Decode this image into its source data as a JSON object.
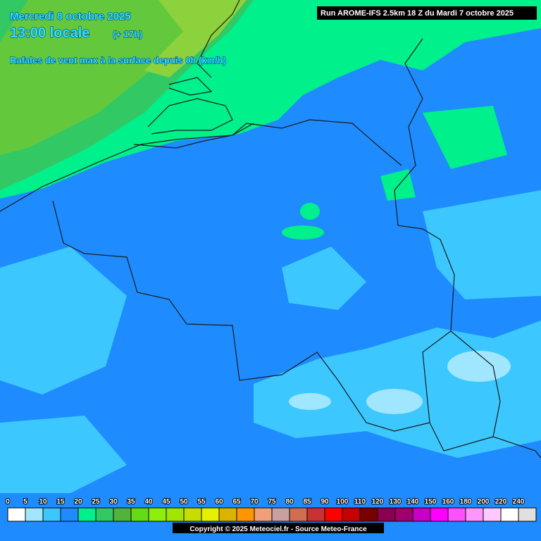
{
  "header": {
    "date": "Mercredi 8 octobre 2025",
    "time": "13:00 locale",
    "lead": "(+ 17h)",
    "parameter": "Rafales de vent max à la surface depuis 0h (km/h)",
    "run": "Run AROME-IFS 2.5km 18 Z du Mardi 7 octobre 2025"
  },
  "legend": {
    "labels": [
      0,
      5,
      10,
      15,
      20,
      25,
      30,
      35,
      40,
      45,
      50,
      55,
      60,
      65,
      70,
      75,
      80,
      85,
      90,
      100,
      110,
      120,
      130,
      140,
      150,
      160,
      180,
      200,
      220,
      240
    ],
    "colors": [
      "#ffffff",
      "#a0e6ff",
      "#3cc8ff",
      "#1e8cff",
      "#00f08c",
      "#32c864",
      "#50b43c",
      "#64dc14",
      "#8cf00a",
      "#a0e600",
      "#c8dc00",
      "#e6f000",
      "#dcb400",
      "#ff9600",
      "#f0a078",
      "#c8a0a0",
      "#d26e50",
      "#c83232",
      "#ff0000",
      "#c80000",
      "#780000",
      "#8c0050",
      "#a0006e",
      "#c800c8",
      "#ff00ff",
      "#ff50ff",
      "#ff96ff",
      "#ffc8ff",
      "#ffffff",
      "#e0e0e0"
    ]
  },
  "copyright": "Copyright © 2025 Meteociel.fr - Source Meteo-France"
}
